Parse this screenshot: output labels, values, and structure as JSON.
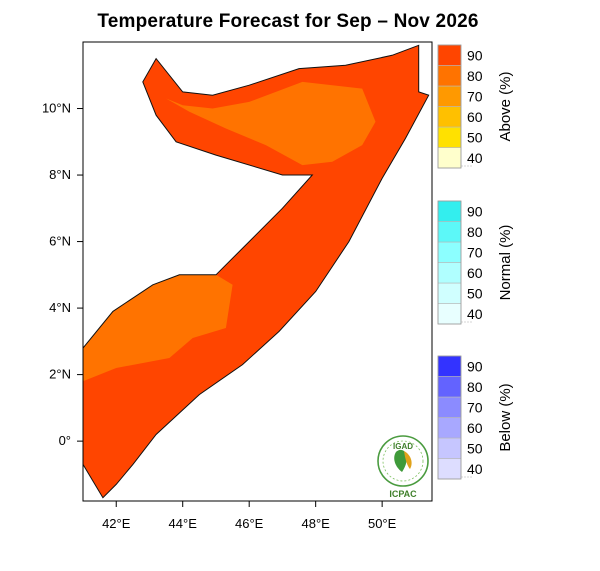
{
  "title": "Temperature Forecast for Sep – Nov 2026",
  "map": {
    "lon_range": [
      41,
      51.5
    ],
    "lat_range": [
      -1.8,
      12.0
    ],
    "x_ticks": [
      {
        "lon": 42,
        "label": "42°E"
      },
      {
        "lon": 44,
        "label": "44°E"
      },
      {
        "lon": 46,
        "label": "46°E"
      },
      {
        "lon": 48,
        "label": "48°E"
      },
      {
        "lon": 50,
        "label": "50°E"
      }
    ],
    "y_ticks": [
      {
        "lat": 10,
        "label": "10°N"
      },
      {
        "lat": 8,
        "label": "8°N"
      },
      {
        "lat": 6,
        "label": "6°N"
      },
      {
        "lat": 4,
        "label": "4°N"
      },
      {
        "lat": 2,
        "label": "2°N"
      },
      {
        "lat": 0,
        "label": "0°"
      }
    ],
    "coastline": [
      [
        41.0,
        2.8
      ],
      [
        41.9,
        3.9
      ],
      [
        43.1,
        4.7
      ],
      [
        43.9,
        5.0
      ],
      [
        45.0,
        5.0
      ],
      [
        46.0,
        6.0
      ],
      [
        47.0,
        7.0
      ],
      [
        47.9,
        8.0
      ],
      [
        47.0,
        8.0
      ],
      [
        45.0,
        8.6
      ],
      [
        43.8,
        9.0
      ],
      [
        43.2,
        9.8
      ],
      [
        42.8,
        10.8
      ],
      [
        43.2,
        11.5
      ],
      [
        44.0,
        10.5
      ],
      [
        44.9,
        10.4
      ],
      [
        46.0,
        10.7
      ],
      [
        47.5,
        11.2
      ],
      [
        48.9,
        11.3
      ],
      [
        50.3,
        11.6
      ],
      [
        51.1,
        11.9
      ],
      [
        51.1,
        10.5
      ],
      [
        51.4,
        10.4
      ],
      [
        50.7,
        9.1
      ],
      [
        50.0,
        7.9
      ],
      [
        49.0,
        6.0
      ],
      [
        48.0,
        4.5
      ],
      [
        46.9,
        3.3
      ],
      [
        45.8,
        2.3
      ],
      [
        44.5,
        1.4
      ],
      [
        43.2,
        0.2
      ],
      [
        42.5,
        -0.7
      ],
      [
        42.0,
        -1.3
      ],
      [
        41.6,
        -1.7
      ],
      [
        41.0,
        -0.7
      ],
      [
        41.0,
        2.8
      ]
    ],
    "forecast_regions": [
      {
        "category": "above",
        "probability": 90,
        "color": "#ff4500",
        "polygon": [
          [
            41.0,
            2.8
          ],
          [
            41.9,
            3.9
          ],
          [
            43.1,
            4.7
          ],
          [
            43.9,
            5.0
          ],
          [
            45.0,
            5.0
          ],
          [
            46.0,
            6.0
          ],
          [
            47.0,
            7.0
          ],
          [
            47.9,
            8.0
          ],
          [
            47.0,
            8.0
          ],
          [
            45.0,
            8.6
          ],
          [
            43.8,
            9.0
          ],
          [
            43.2,
            9.8
          ],
          [
            42.8,
            10.8
          ],
          [
            43.2,
            11.5
          ],
          [
            44.0,
            10.5
          ],
          [
            44.9,
            10.4
          ],
          [
            46.0,
            10.7
          ],
          [
            47.5,
            11.2
          ],
          [
            48.9,
            11.3
          ],
          [
            50.3,
            11.6
          ],
          [
            51.1,
            11.9
          ],
          [
            51.1,
            10.5
          ],
          [
            51.4,
            10.4
          ],
          [
            50.7,
            9.1
          ],
          [
            50.0,
            7.9
          ],
          [
            49.0,
            6.0
          ],
          [
            48.0,
            4.5
          ],
          [
            46.9,
            3.3
          ],
          [
            45.8,
            2.3
          ],
          [
            44.5,
            1.4
          ],
          [
            43.2,
            0.2
          ],
          [
            42.5,
            -0.7
          ],
          [
            42.0,
            -1.3
          ],
          [
            41.6,
            -1.7
          ],
          [
            41.0,
            -0.7
          ],
          [
            41.0,
            2.8
          ]
        ]
      },
      {
        "category": "above",
        "probability": 80,
        "color": "#ff7300",
        "polygon": [
          [
            41.0,
            2.8
          ],
          [
            41.9,
            3.9
          ],
          [
            43.1,
            4.7
          ],
          [
            43.9,
            5.0
          ],
          [
            45.0,
            5.0
          ],
          [
            45.5,
            4.7
          ],
          [
            45.3,
            3.4
          ],
          [
            44.3,
            3.1
          ],
          [
            43.6,
            2.5
          ],
          [
            42.0,
            2.2
          ],
          [
            41.0,
            1.8
          ]
        ]
      },
      {
        "category": "above",
        "probability": 80,
        "color": "#ff7300",
        "polygon": [
          [
            43.5,
            10.3
          ],
          [
            44.2,
            9.9
          ],
          [
            45.3,
            9.4
          ],
          [
            46.5,
            8.9
          ],
          [
            47.6,
            8.3
          ],
          [
            48.5,
            8.4
          ],
          [
            49.4,
            8.9
          ],
          [
            49.8,
            9.6
          ],
          [
            49.4,
            10.6
          ],
          [
            47.6,
            10.8
          ],
          [
            46.0,
            10.2
          ],
          [
            44.9,
            10.0
          ],
          [
            44.0,
            10.1
          ]
        ]
      }
    ]
  },
  "legend": {
    "above": {
      "title": "Above (%)",
      "colors": [
        "#ffffcc",
        "#ffe100",
        "#ffc000",
        "#ff9900",
        "#ff7300",
        "#ff4500"
      ]
    },
    "normal": {
      "title": "Normal (%)",
      "colors": [
        "#e8ffff",
        "#d0ffff",
        "#b0ffff",
        "#8cffff",
        "#5cf8f8",
        "#33eeee"
      ]
    },
    "below": {
      "title": "Below (%)",
      "colors": [
        "#ddddff",
        "#c6c6ff",
        "#a8a8ff",
        "#8b8bff",
        "#6363ff",
        "#3333ff"
      ]
    },
    "labels": [
      "40",
      "50",
      "60",
      "70",
      "80",
      "90"
    ]
  },
  "logo": {
    "top": "IGAD",
    "bottom": "ICPAC",
    "leaf_color": "#3f9a3a"
  }
}
